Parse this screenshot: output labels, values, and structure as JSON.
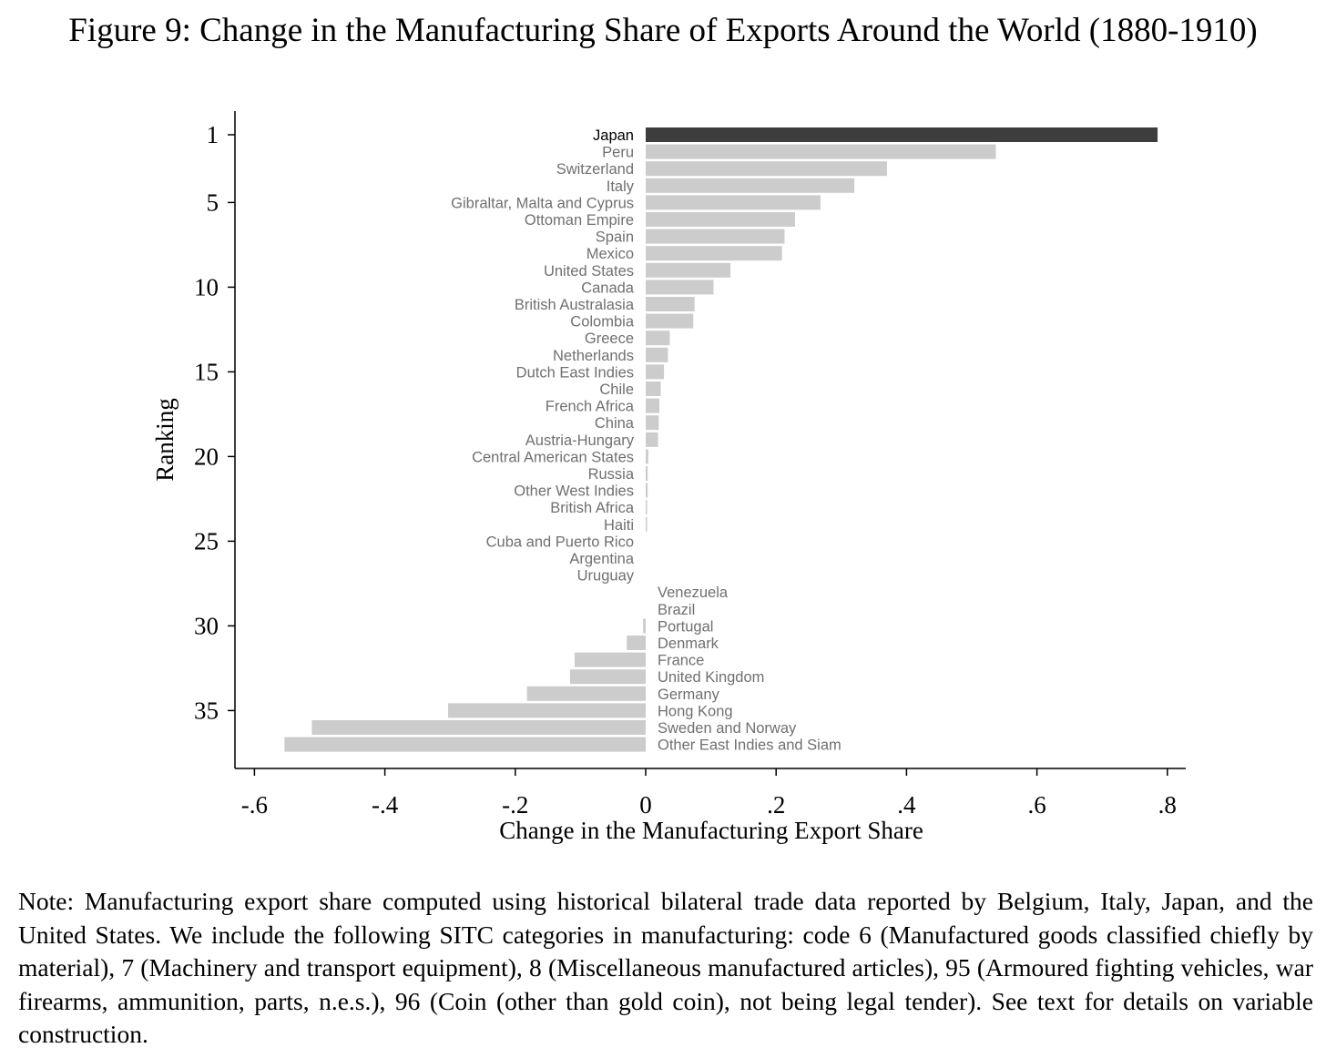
{
  "title": "Figure 9: Change in the Manufacturing Share of Exports Around the World (1880-1910)",
  "note": "Note: Manufacturing export share computed using historical bilateral trade data reported by Belgium, Italy, Japan, and the United States. We include the following SITC categories in manufacturing: code 6 (Manufactured goods classified chiefly by material), 7 (Machinery and transport equipment), 8 (Miscellaneous manufactured articles), 95 (Armoured fighting vehicles, war firearms, ammunition, parts, n.e.s.), 96 (Coin (other than gold coin), not being legal tender). See text for details on variable construction.",
  "chart_data": {
    "type": "bar",
    "orientation": "horizontal",
    "title": "Figure 9: Change in the Manufacturing Share of Exports Around the World (1880-1910)",
    "xlabel": "Change in the Manufacturing Export Share",
    "ylabel": "Ranking",
    "xlim": [
      -0.6,
      0.8
    ],
    "xticks": [
      -0.6,
      -0.4,
      -0.2,
      0,
      0.2,
      0.4,
      0.6,
      0.8
    ],
    "xtick_labels": [
      "-.6",
      "-.4",
      "-.2",
      "0",
      ".2",
      ".4",
      ".6",
      ".8"
    ],
    "yticks": [
      1,
      5,
      10,
      15,
      20,
      25,
      30,
      35
    ],
    "ytick_labels": [
      "1",
      "5",
      "10",
      "15",
      "20",
      "25",
      "30",
      "35"
    ],
    "highlight_color": "#3d3d3d",
    "bar_color": "#cccccc",
    "categories": [
      "Japan",
      "Peru",
      "Switzerland",
      "Italy",
      "Gibraltar, Malta and Cyprus",
      "Ottoman Empire",
      "Spain",
      "Mexico",
      "United States",
      "Canada",
      "British Australasia",
      "Colombia",
      "Greece",
      "Netherlands",
      "Dutch East Indies",
      "Chile",
      "French Africa",
      "China",
      "Austria-Hungary",
      "Central American States",
      "Russia",
      "Other West Indies",
      "British Africa",
      "Haiti",
      "Cuba and Puerto Rico",
      "Argentina",
      "Uruguay",
      "Venezuela",
      "Brazil",
      "Portugal",
      "Denmark",
      "France",
      "United Kingdom",
      "Germany",
      "Hong Kong",
      "Sweden and Norway",
      "Other East Indies and Siam"
    ],
    "values": [
      0.785,
      0.537,
      0.37,
      0.32,
      0.268,
      0.229,
      0.213,
      0.209,
      0.13,
      0.104,
      0.075,
      0.073,
      0.037,
      0.034,
      0.028,
      0.023,
      0.021,
      0.02,
      0.019,
      0.004,
      0.003,
      0.003,
      0.002,
      0.002,
      0.0,
      0.0,
      0.0,
      0.0,
      0.0,
      -0.004,
      -0.029,
      -0.109,
      -0.116,
      -0.182,
      -0.303,
      -0.512,
      -0.554
    ]
  }
}
